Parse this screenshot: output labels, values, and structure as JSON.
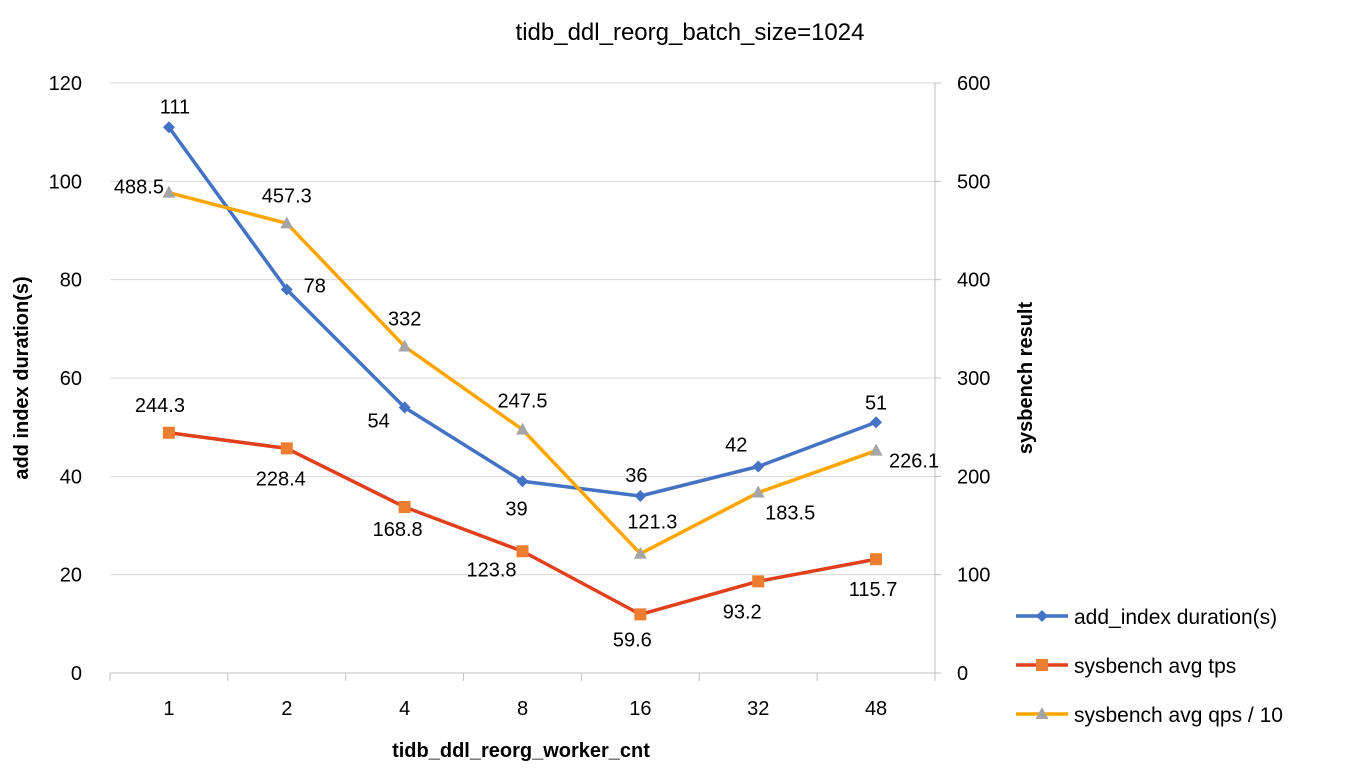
{
  "chart_data": {
    "type": "line",
    "title": "tidb_ddl_reorg_batch_size=1024",
    "xlabel": "tidb_ddl_reorg_worker_cnt",
    "ylabel_left": "add index duration(s)",
    "ylabel_right": "sysbench result",
    "categories": [
      "1",
      "2",
      "4",
      "8",
      "16",
      "32",
      "48"
    ],
    "ylim_left": [
      0,
      120
    ],
    "yticks_left": [
      0,
      20,
      40,
      60,
      80,
      100,
      120
    ],
    "ylim_right": [
      0,
      600
    ],
    "yticks_right": [
      0,
      100,
      200,
      300,
      400,
      500,
      600
    ],
    "grid": true,
    "legend_position": "bottom-right",
    "series": [
      {
        "name": "add_index duration(s)",
        "axis": "left",
        "values": [
          111,
          78,
          54,
          39,
          36,
          42,
          51
        ],
        "line_color": "#4472C4",
        "marker": "diamond",
        "marker_color": "#4472C4"
      },
      {
        "name": "sysbench avg tps",
        "axis": "right",
        "values": [
          244.3,
          228.4,
          168.8,
          123.8,
          59.6,
          93.2,
          115.7
        ],
        "line_color": "#E0401B",
        "marker": "square",
        "marker_color": "#ED7D31"
      },
      {
        "name": "sysbench avg qps / 10",
        "axis": "right",
        "values": [
          488.5,
          457.3,
          332,
          247.5,
          121.3,
          183.5,
          226.1
        ],
        "line_color": "#FFA500",
        "marker": "triangle",
        "marker_color": "#A5A5A5"
      }
    ]
  }
}
